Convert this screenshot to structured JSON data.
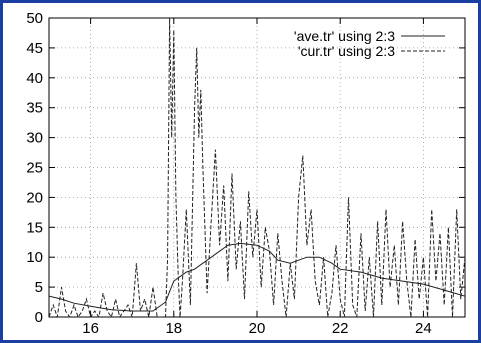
{
  "chart_data": {
    "type": "line",
    "xlim": [
      15,
      25
    ],
    "ylim": [
      0,
      50
    ],
    "x_ticks": [
      16,
      18,
      20,
      22,
      24
    ],
    "y_ticks": [
      0,
      5,
      10,
      15,
      20,
      25,
      30,
      35,
      40,
      45,
      50
    ],
    "grid": true,
    "legend_position": "top-right",
    "colors": {
      "frame": "#1a3fa0",
      "series": "#222222",
      "grid": "#999999"
    },
    "series": [
      {
        "name": "'ave.tr' using 2:3",
        "style": "solid",
        "x": [
          15.0,
          15.3,
          15.6,
          16.0,
          16.5,
          17.0,
          17.5,
          17.8,
          18.0,
          18.3,
          18.5,
          18.8,
          19.0,
          19.3,
          19.6,
          20.0,
          20.3,
          20.5,
          20.8,
          21.0,
          21.2,
          21.5,
          21.8,
          22.0,
          22.5,
          23.0,
          23.5,
          24.0,
          24.5,
          25.0
        ],
        "values": [
          3.5,
          3.0,
          2.3,
          1.8,
          1.2,
          1.0,
          1.0,
          2.5,
          6.0,
          7.5,
          8.0,
          9.5,
          10.5,
          12.0,
          12.3,
          12.0,
          11.0,
          9.5,
          9.0,
          9.5,
          10.0,
          10.0,
          9.0,
          8.0,
          7.5,
          6.5,
          6.0,
          5.5,
          4.5,
          3.5
        ]
      },
      {
        "name": "'cur.tr' using 2:3",
        "style": "dashed",
        "x": [
          15.0,
          15.1,
          15.2,
          15.3,
          15.4,
          15.5,
          15.6,
          15.7,
          15.8,
          15.9,
          16.0,
          16.1,
          16.2,
          16.3,
          16.4,
          16.5,
          16.6,
          16.7,
          16.8,
          16.9,
          17.0,
          17.1,
          17.2,
          17.3,
          17.4,
          17.5,
          17.6,
          17.7,
          17.8,
          17.85,
          17.9,
          17.95,
          18.0,
          18.05,
          18.1,
          18.15,
          18.2,
          18.3,
          18.4,
          18.5,
          18.55,
          18.6,
          18.65,
          18.7,
          18.8,
          18.9,
          19.0,
          19.1,
          19.2,
          19.3,
          19.4,
          19.5,
          19.6,
          19.7,
          19.8,
          19.9,
          20.0,
          20.1,
          20.2,
          20.3,
          20.4,
          20.5,
          20.6,
          20.7,
          20.8,
          20.9,
          21.0,
          21.1,
          21.2,
          21.3,
          21.4,
          21.5,
          21.6,
          21.7,
          21.8,
          21.9,
          22.0,
          22.1,
          22.2,
          22.3,
          22.4,
          22.5,
          22.6,
          22.7,
          22.8,
          22.9,
          23.0,
          23.1,
          23.2,
          23.3,
          23.4,
          23.5,
          23.6,
          23.7,
          23.8,
          23.9,
          24.0,
          24.1,
          24.2,
          24.3,
          24.4,
          24.5,
          24.6,
          24.7,
          24.8,
          24.9,
          25.0
        ],
        "values": [
          0,
          2,
          0,
          5,
          1,
          0,
          2,
          0,
          1,
          3,
          0,
          1,
          0,
          4,
          1,
          0,
          3,
          0,
          1,
          2,
          0,
          9,
          1,
          3,
          0,
          5,
          0,
          0,
          0,
          10,
          50,
          30,
          48,
          20,
          8,
          0,
          5,
          18,
          2,
          35,
          45,
          30,
          38,
          25,
          4,
          16,
          28,
          12,
          22,
          6,
          24,
          8,
          16,
          3,
          21,
          10,
          18,
          5,
          15,
          11,
          2,
          14,
          6,
          0,
          9,
          3,
          20,
          27,
          12,
          18,
          6,
          2,
          10,
          0,
          4,
          12,
          3,
          0,
          20,
          2,
          0,
          14,
          1,
          10,
          0,
          16,
          2,
          18,
          5,
          12,
          2,
          16,
          6,
          0,
          13,
          3,
          10,
          0,
          18,
          6,
          14,
          2,
          15,
          0,
          18,
          3,
          10
        ]
      }
    ]
  }
}
